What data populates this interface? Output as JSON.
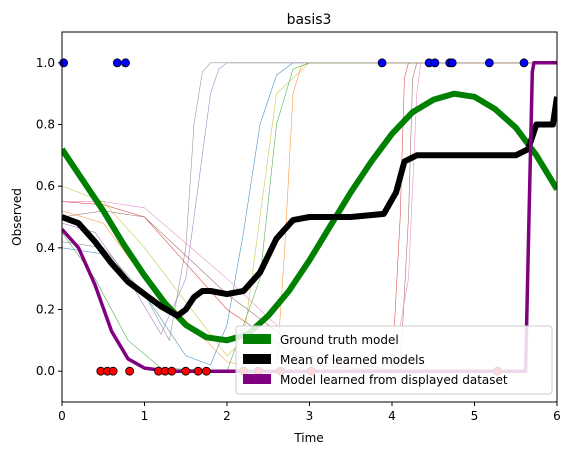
{
  "chart_data": {
    "type": "line",
    "title": "basis3",
    "xlabel": "Time",
    "ylabel": "Observed",
    "xlim": [
      0,
      6
    ],
    "ylim": [
      -0.1,
      1.1
    ],
    "xticks": [
      0,
      1,
      2,
      3,
      4,
      5,
      6
    ],
    "yticks": [
      0.0,
      0.2,
      0.4,
      0.6,
      0.8,
      1.0
    ],
    "xtick_labels": [
      "0",
      "1",
      "2",
      "3",
      "4",
      "5",
      "6"
    ],
    "ytick_labels": [
      "0.0",
      "0.2",
      "0.4",
      "0.6",
      "0.8",
      "1.0"
    ],
    "grid": false,
    "legend_position": "lower-right",
    "series": [
      {
        "name": "Ground truth model",
        "color": "#008000",
        "x": [
          0,
          0.25,
          0.5,
          0.75,
          1.0,
          1.25,
          1.5,
          1.75,
          2.0,
          2.25,
          2.5,
          2.75,
          3.0,
          3.25,
          3.5,
          3.75,
          4.0,
          4.25,
          4.5,
          4.75,
          5.0,
          5.25,
          5.5,
          5.75,
          6.0
        ],
        "y": [
          0.72,
          0.62,
          0.52,
          0.41,
          0.31,
          0.22,
          0.15,
          0.11,
          0.1,
          0.12,
          0.18,
          0.26,
          0.36,
          0.47,
          0.58,
          0.68,
          0.77,
          0.84,
          0.88,
          0.9,
          0.89,
          0.85,
          0.79,
          0.7,
          0.59
        ]
      },
      {
        "name": "Mean of learned models",
        "color": "#000000",
        "x": [
          0,
          0.2,
          0.4,
          0.6,
          0.8,
          1.0,
          1.2,
          1.4,
          1.5,
          1.6,
          1.7,
          1.8,
          2.0,
          2.2,
          2.4,
          2.6,
          2.8,
          3.0,
          3.5,
          3.9,
          4.05,
          4.15,
          4.3,
          4.6,
          5.0,
          5.5,
          5.65,
          5.75,
          5.95,
          6.0
        ],
        "y": [
          0.5,
          0.48,
          0.42,
          0.35,
          0.29,
          0.25,
          0.21,
          0.18,
          0.2,
          0.24,
          0.26,
          0.26,
          0.25,
          0.26,
          0.32,
          0.43,
          0.49,
          0.5,
          0.5,
          0.51,
          0.58,
          0.68,
          0.7,
          0.7,
          0.7,
          0.7,
          0.72,
          0.8,
          0.8,
          0.89
        ]
      },
      {
        "name": "Model learned from displayed dataset",
        "color": "#800080",
        "x": [
          0,
          0.2,
          0.4,
          0.6,
          0.8,
          1.0,
          1.2,
          1.4,
          2.0,
          3.0,
          4.0,
          5.0,
          5.62,
          5.66,
          5.7,
          5.72,
          6.0
        ],
        "y": [
          0.46,
          0.4,
          0.28,
          0.13,
          0.04,
          0.01,
          0.003,
          0.0,
          0.0,
          0.0,
          0.0,
          0.0,
          0.0,
          0.5,
          0.97,
          1.0,
          1.0
        ]
      }
    ],
    "thin_model_curves": [
      {
        "color": "#1f77b4",
        "x": [
          0,
          0.5,
          1.0,
          1.5,
          1.8,
          2.0,
          2.2,
          2.4,
          2.6,
          2.8,
          3.0,
          6.0
        ],
        "y": [
          0.4,
          0.38,
          0.25,
          0.05,
          0.02,
          0.15,
          0.45,
          0.8,
          0.96,
          1.0,
          1.0,
          1.0
        ]
      },
      {
        "color": "#ff7f0e",
        "x": [
          0,
          0.5,
          1.0,
          2.0,
          2.6,
          2.7,
          2.8,
          2.9,
          3.0,
          6.0
        ],
        "y": [
          0.52,
          0.48,
          0.3,
          0.03,
          0.0,
          0.4,
          0.9,
          0.99,
          1.0,
          1.0
        ]
      },
      {
        "color": "#2ca02c",
        "x": [
          0,
          0.4,
          0.8,
          1.2,
          2.0,
          2.4,
          2.6,
          2.8,
          3.0,
          6.0
        ],
        "y": [
          0.45,
          0.3,
          0.1,
          0.01,
          0.0,
          0.3,
          0.8,
          0.98,
          1.0,
          1.0
        ]
      },
      {
        "color": "#d62728",
        "x": [
          0,
          0.5,
          1.0,
          2.0,
          3.0,
          4.0,
          4.1,
          4.15,
          4.2,
          6.0
        ],
        "y": [
          0.55,
          0.54,
          0.5,
          0.2,
          0.02,
          0.0,
          0.5,
          0.95,
          1.0,
          1.0
        ]
      },
      {
        "color": "#9467bd",
        "x": [
          0,
          0.4,
          0.8,
          1.2,
          1.5,
          1.7,
          1.8,
          1.9,
          2.0,
          6.0
        ],
        "y": [
          0.48,
          0.45,
          0.3,
          0.12,
          0.3,
          0.7,
          0.9,
          0.98,
          1.0,
          1.0
        ]
      },
      {
        "color": "#8c564b",
        "x": [
          0,
          0.5,
          1.0,
          2.0,
          3.0,
          4.1,
          4.2,
          4.25,
          4.3,
          6.0
        ],
        "y": [
          0.5,
          0.52,
          0.5,
          0.25,
          0.05,
          0.0,
          0.5,
          0.95,
          1.0,
          1.0
        ]
      },
      {
        "color": "#e377c2",
        "x": [
          0,
          0.5,
          1.0,
          2.0,
          3.0,
          4.0,
          4.2,
          4.3,
          4.35,
          6.0
        ],
        "y": [
          0.55,
          0.55,
          0.53,
          0.3,
          0.05,
          0.0,
          0.3,
          0.9,
          1.0,
          1.0
        ]
      },
      {
        "color": "#bcbd22",
        "x": [
          0,
          0.5,
          1.0,
          2.0,
          2.2,
          2.4,
          2.6,
          3.0,
          6.0
        ],
        "y": [
          0.6,
          0.55,
          0.4,
          0.05,
          0.1,
          0.5,
          0.9,
          1.0,
          1.0
        ]
      },
      {
        "color": "#7f7f7f",
        "x": [
          0,
          0.5,
          1.0,
          1.3,
          1.5,
          1.6,
          1.7,
          1.8,
          6.0
        ],
        "y": [
          0.42,
          0.4,
          0.25,
          0.1,
          0.4,
          0.8,
          0.97,
          1.0,
          1.0
        ]
      }
    ],
    "observations": [
      {
        "label": "1",
        "color": "#0000ff",
        "x": [
          0.02,
          0.67,
          0.77,
          3.88,
          4.45,
          4.52,
          4.7,
          4.73,
          5.18,
          5.6
        ]
      },
      {
        "label": "0",
        "color": "#ff0000",
        "x": [
          0.47,
          0.55,
          0.62,
          0.82,
          1.17,
          1.25,
          1.33,
          1.5,
          1.65,
          1.75,
          2.2,
          2.38,
          2.65,
          3.02,
          5.28
        ]
      }
    ]
  }
}
